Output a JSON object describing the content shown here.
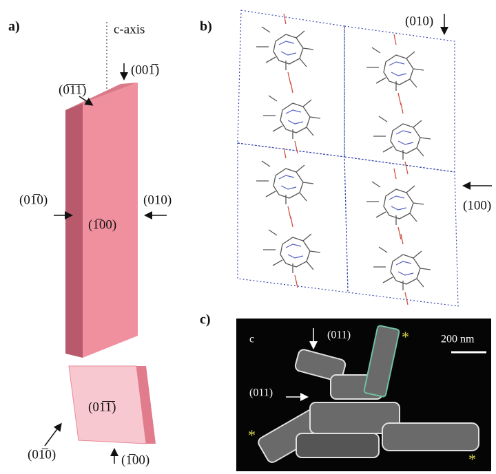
{
  "panel_a": {
    "label": "a)",
    "axis_label": "c-axis",
    "top_crystal": {
      "face_top_left": "(0̅1̅1̅)",
      "face_top": "(001̅)",
      "face_left": "(01̅0)",
      "face_right": "(010)",
      "face_front": "(1̅00)"
    },
    "bottom_crystal": {
      "face_front": "(01̅1̅)",
      "face_left": "(01̅0)",
      "face_bottom": "(1̅00)"
    }
  },
  "panel_b": {
    "label": "b)",
    "direction_top": "(010)",
    "direction_right": "(100)"
  },
  "panel_c": {
    "label": "c)",
    "corner_label": "c",
    "face_top": "(011)",
    "face_left": "(011)",
    "scale_bar": "200 nm",
    "markers": [
      "*",
      "*",
      "*"
    ]
  }
}
